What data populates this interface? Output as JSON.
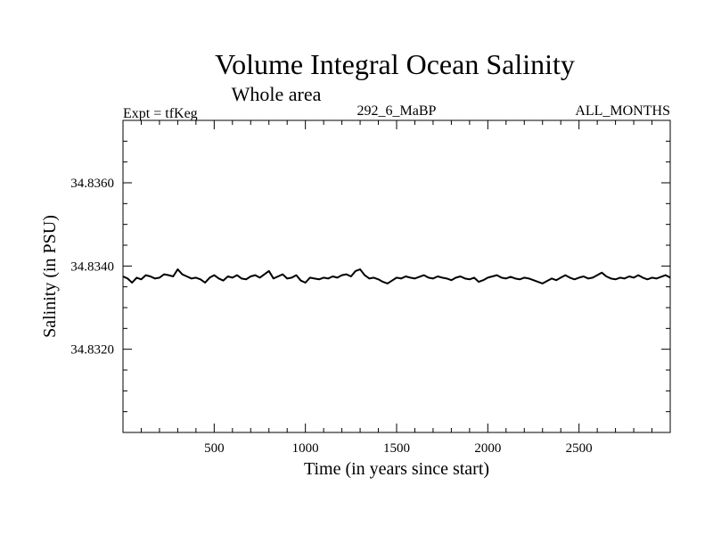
{
  "chart_data": {
    "type": "line",
    "title": "Volume Integral Ocean Salinity",
    "subtitle": "Whole area",
    "header_left": "Expt = tfKeg",
    "header_center": "292_6_MaBP",
    "header_right": "ALL_MONTHS",
    "xlabel": "Time (in years since start)",
    "ylabel": "Salinity (in PSU)",
    "xlim": [
      0,
      3000
    ],
    "ylim": [
      34.83,
      34.8375
    ],
    "x_ticks": [
      {
        "value": 500,
        "label": "500"
      },
      {
        "value": 1000,
        "label": "1000"
      },
      {
        "value": 1500,
        "label": "1500"
      },
      {
        "value": 2000,
        "label": "2000"
      },
      {
        "value": 2500,
        "label": "2500"
      }
    ],
    "y_ticks": [
      {
        "value": 34.832,
        "label": "34.8320"
      },
      {
        "value": 34.834,
        "label": "34.8340"
      },
      {
        "value": 34.836,
        "label": "34.8360"
      }
    ],
    "x_minor_step": 100,
    "y_minor_step": 0.0005,
    "grid": false,
    "legend": "none",
    "series": [
      {
        "color": "#000000",
        "x": [
          0,
          25,
          50,
          75,
          100,
          125,
          150,
          175,
          200,
          225,
          250,
          275,
          300,
          325,
          350,
          375,
          400,
          425,
          450,
          475,
          500,
          525,
          550,
          575,
          600,
          625,
          650,
          675,
          700,
          725,
          750,
          775,
          800,
          825,
          850,
          875,
          900,
          925,
          950,
          975,
          1000,
          1025,
          1050,
          1075,
          1100,
          1125,
          1150,
          1175,
          1200,
          1225,
          1250,
          1275,
          1300,
          1325,
          1350,
          1375,
          1400,
          1425,
          1450,
          1475,
          1500,
          1525,
          1550,
          1575,
          1600,
          1625,
          1650,
          1675,
          1700,
          1725,
          1750,
          1775,
          1800,
          1825,
          1850,
          1875,
          1900,
          1925,
          1950,
          1975,
          2000,
          2025,
          2050,
          2075,
          2100,
          2125,
          2150,
          2175,
          2200,
          2225,
          2250,
          2275,
          2300,
          2325,
          2350,
          2375,
          2400,
          2425,
          2450,
          2475,
          2500,
          2525,
          2550,
          2575,
          2600,
          2625,
          2650,
          2675,
          2700,
          2725,
          2750,
          2775,
          2800,
          2825,
          2850,
          2875,
          2900,
          2925,
          2950,
          2975,
          3000
        ],
        "y": [
          34.83375,
          34.8337,
          34.8336,
          34.83372,
          34.83368,
          34.83378,
          34.83375,
          34.8337,
          34.83372,
          34.8338,
          34.83378,
          34.83375,
          34.83392,
          34.8338,
          34.83375,
          34.8337,
          34.83372,
          34.83368,
          34.8336,
          34.83372,
          34.83378,
          34.8337,
          34.83365,
          34.83375,
          34.83372,
          34.83378,
          34.8337,
          34.83368,
          34.83375,
          34.83378,
          34.83372,
          34.8338,
          34.83388,
          34.8337,
          34.83375,
          34.8338,
          34.8337,
          34.83372,
          34.83378,
          34.83365,
          34.8336,
          34.83372,
          34.8337,
          34.83368,
          34.83372,
          34.8337,
          34.83375,
          34.83372,
          34.83378,
          34.8338,
          34.83375,
          34.83388,
          34.83392,
          34.83378,
          34.8337,
          34.83372,
          34.83368,
          34.83362,
          34.83358,
          34.83365,
          34.83372,
          34.8337,
          34.83375,
          34.83372,
          34.8337,
          34.83374,
          34.83378,
          34.83372,
          34.8337,
          34.83375,
          34.83372,
          34.8337,
          34.83366,
          34.83372,
          34.83375,
          34.8337,
          34.83368,
          34.83372,
          34.83362,
          34.83366,
          34.83372,
          34.83375,
          34.83378,
          34.83372,
          34.8337,
          34.83374,
          34.8337,
          34.83368,
          34.83372,
          34.8337,
          34.83366,
          34.83362,
          34.83358,
          34.83364,
          34.8337,
          34.83366,
          34.83372,
          34.83378,
          34.83372,
          34.83368,
          34.83372,
          34.83375,
          34.8337,
          34.83372,
          34.83378,
          34.83384,
          34.83375,
          34.8337,
          34.83368,
          34.83372,
          34.8337,
          34.83375,
          34.83372,
          34.83378,
          34.83372,
          34.83368,
          34.83372,
          34.8337,
          34.83374,
          34.83378,
          34.83372
        ]
      }
    ]
  }
}
